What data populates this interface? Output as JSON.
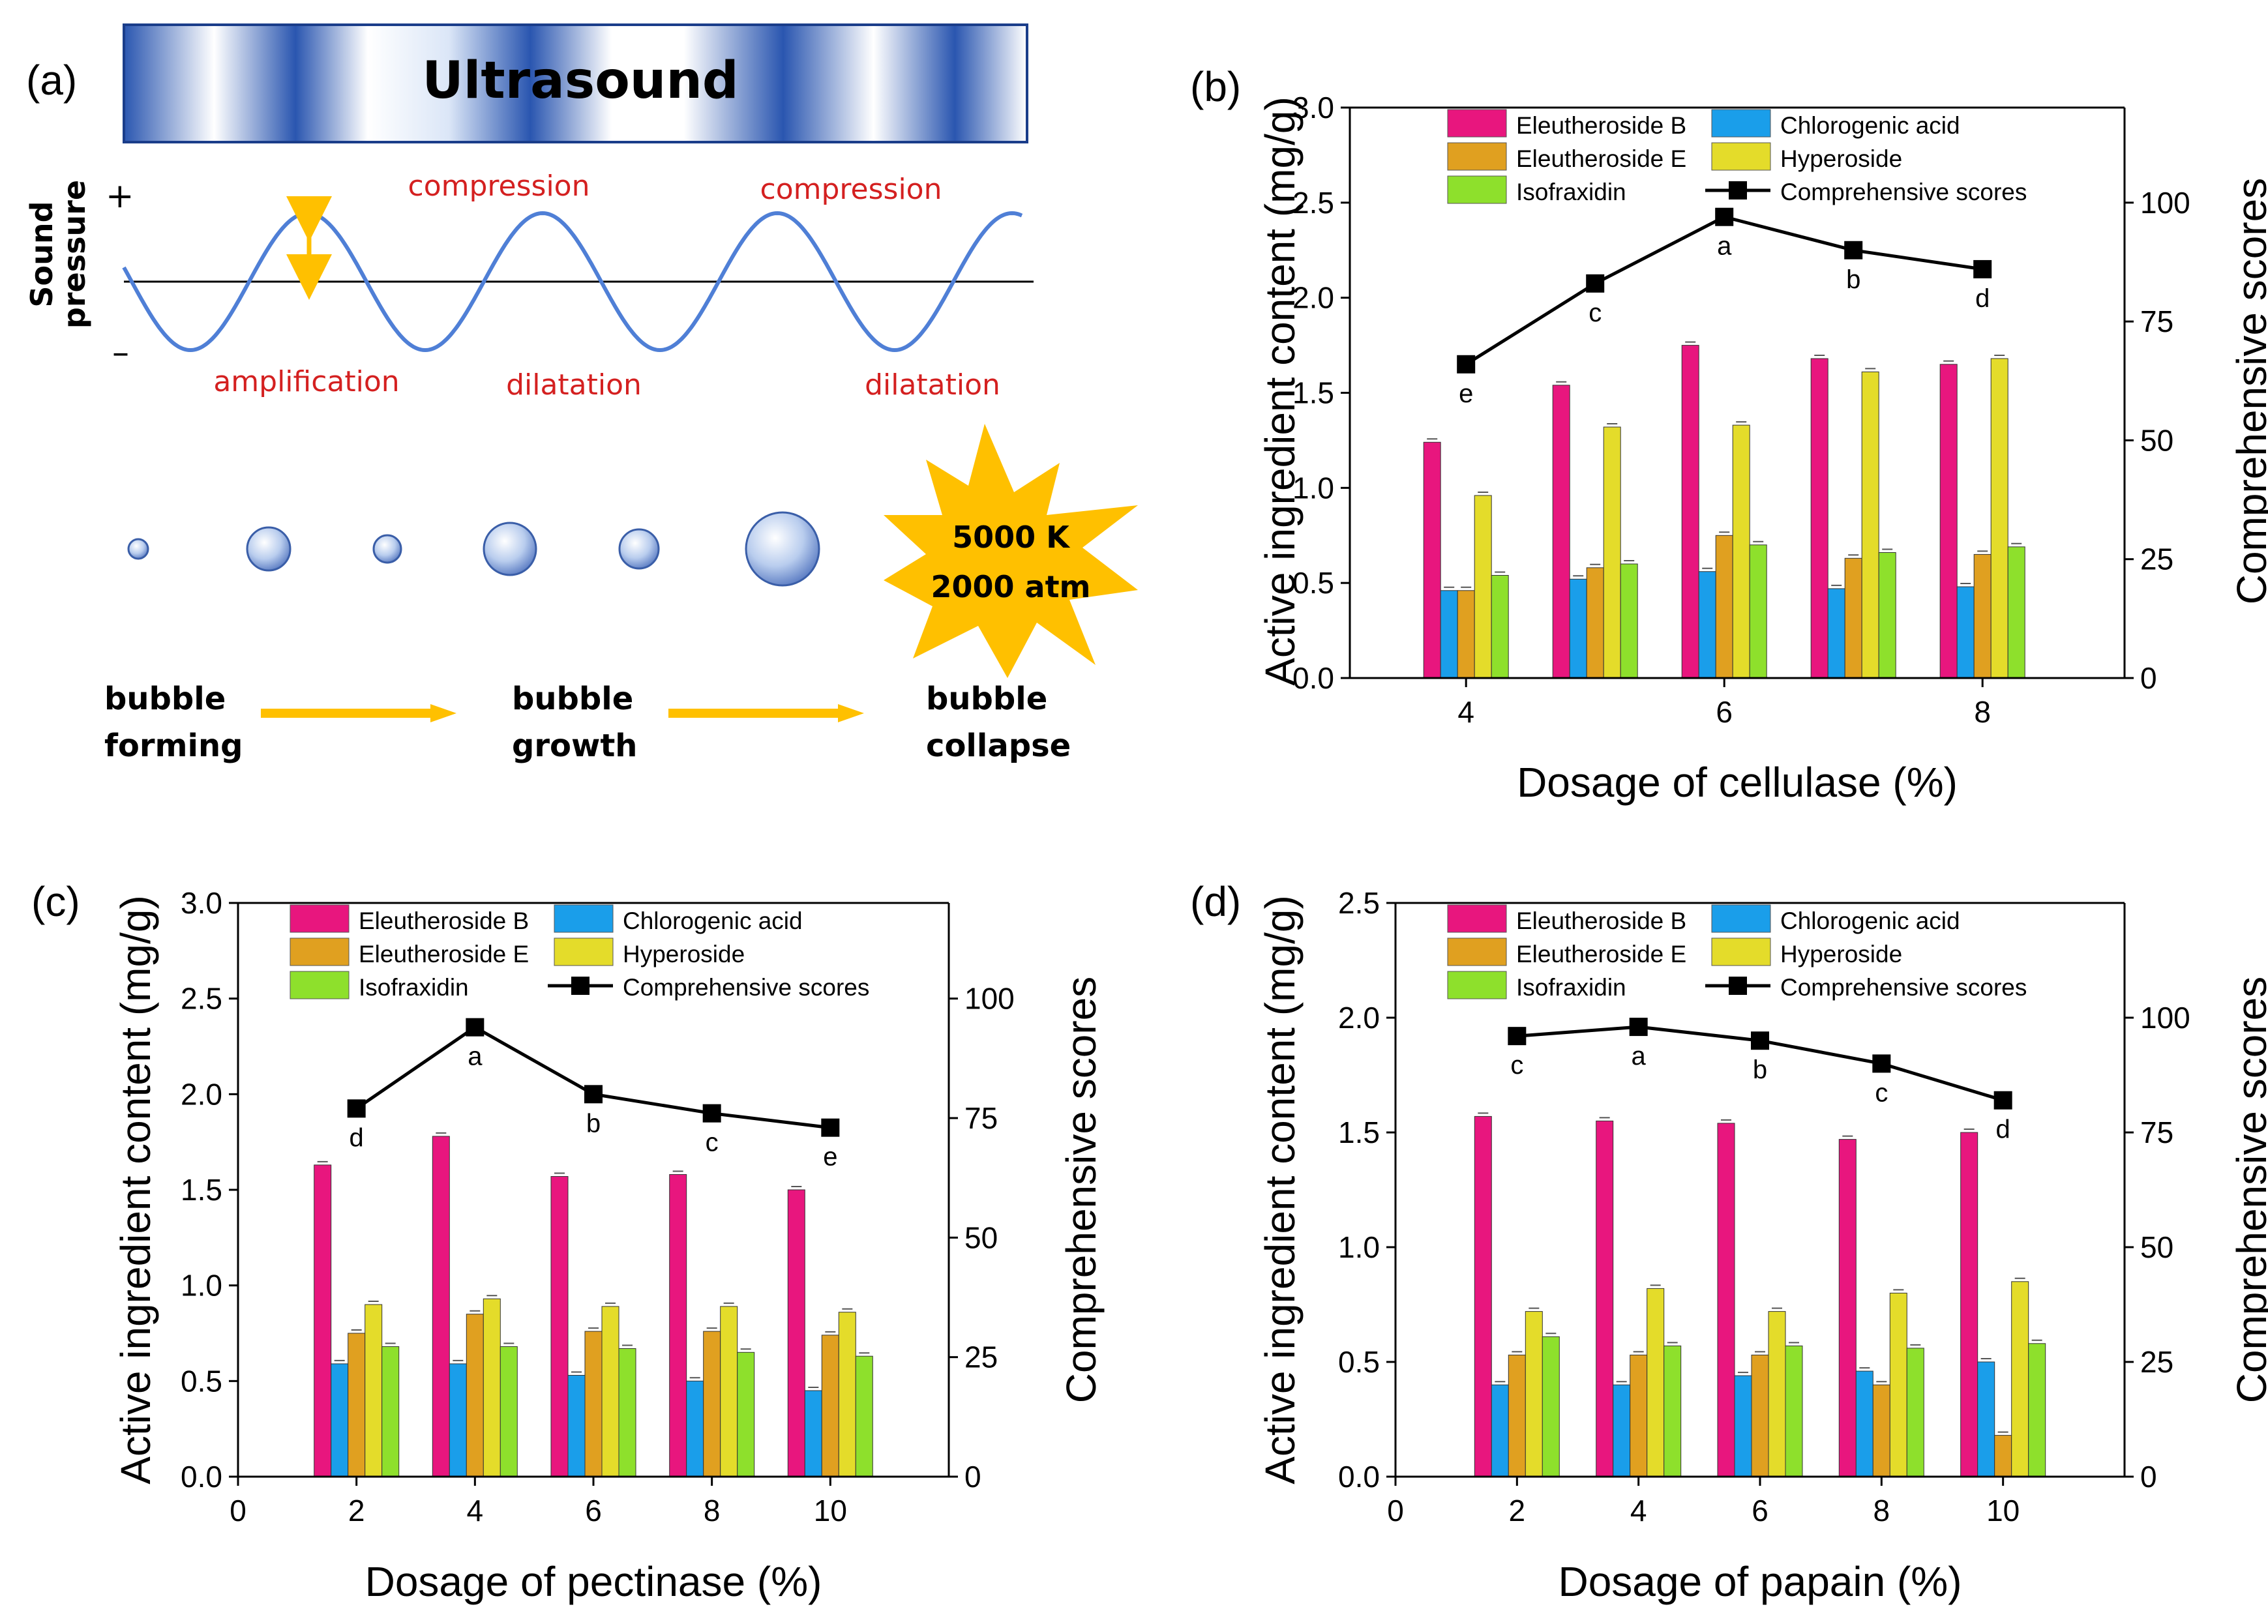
{
  "panel_a": {
    "label": "(a)",
    "banner_title": "Ultrasound",
    "axis_label_line1": "Sound",
    "axis_label_line2": "pressure",
    "plus_sign": "+",
    "minus_sign": "–",
    "compression_1": "compression",
    "compression_2": "compression",
    "amplification": "amplification",
    "dilatation_1": "dilatation",
    "dilatation_2": "dilatation",
    "burst_line1": "5000 K",
    "burst_line2": "2000 atm",
    "stage1_line1": "bubble",
    "stage1_line2": "forming",
    "stage2_line1": "bubble",
    "stage2_line2": "growth",
    "stage3_line1": "bubble",
    "stage3_line2": "collapse",
    "colors": {
      "wave": "#4f7fd6",
      "red_text": "#d42020",
      "arrow": "#ffc000",
      "burst": "#ffc000",
      "banner_dark": "#2a56b0"
    }
  },
  "series_colors": {
    "Eleutheroside B": "#e8167e",
    "Chlorogenic acid": "#1a9eea",
    "Eleutheroside E": "#e0a020",
    "Hyperoside": "#e4dc2a",
    "Isofraxidin": "#8ee02c",
    "Comprehensive scores": "#000000"
  },
  "chart_data": [
    {
      "panel": "(b)",
      "type": "bar",
      "xlabel": "Dosage of cellulase (%)",
      "ylabel": "Active ingredient content (mg/g)",
      "y2label": "Comprehensive scores",
      "x": [
        4,
        5,
        6,
        7,
        8
      ],
      "xlim": [
        3.1,
        9.1
      ],
      "xticks": [
        4,
        6,
        8
      ],
      "ylim": [
        0,
        3.0
      ],
      "yticks": [
        "0.0",
        "0.5",
        "1.0",
        "1.5",
        "2.0",
        "2.5",
        "3.0"
      ],
      "y2lim": [
        0,
        120
      ],
      "y2ticks": [
        "0",
        "25",
        "50",
        "75",
        "100"
      ],
      "legend_entries": [
        "Eleutheroside B",
        "Chlorogenic acid",
        "Eleutheroside E",
        "Hyperoside",
        "Isofraxidin",
        "Comprehensive scores"
      ],
      "series": [
        {
          "name": "Eleutheroside B",
          "values": [
            1.24,
            1.54,
            1.75,
            1.68,
            1.65
          ]
        },
        {
          "name": "Chlorogenic acid",
          "values": [
            0.46,
            0.52,
            0.56,
            0.47,
            0.48
          ]
        },
        {
          "name": "Eleutheroside E",
          "values": [
            0.46,
            0.58,
            0.75,
            0.63,
            0.65
          ]
        },
        {
          "name": "Hyperoside",
          "values": [
            0.96,
            1.32,
            1.33,
            1.61,
            1.68
          ]
        },
        {
          "name": "Isofraxidin",
          "values": [
            0.54,
            0.6,
            0.7,
            0.66,
            0.69
          ]
        }
      ],
      "line": {
        "name": "Comprehensive scores",
        "values": [
          66,
          83,
          97,
          90,
          86
        ],
        "labels": [
          "e",
          "c",
          "a",
          "b",
          "d"
        ]
      }
    },
    {
      "panel": "(c)",
      "type": "bar",
      "xlabel": "Dosage of pectinase (%)",
      "ylabel": "Active ingredient content (mg/g)",
      "y2label": "Comprehensive scores",
      "x": [
        2,
        4,
        6,
        8,
        10
      ],
      "xlim": [
        0,
        12
      ],
      "xticks": [
        0,
        2,
        4,
        6,
        8,
        10
      ],
      "ylim": [
        0,
        3.0
      ],
      "yticks": [
        "0.0",
        "0.5",
        "1.0",
        "1.5",
        "2.0",
        "2.5",
        "3.0"
      ],
      "y2lim": [
        0,
        120
      ],
      "y2ticks": [
        "0",
        "25",
        "50",
        "75",
        "100"
      ],
      "legend_entries": [
        "Eleutheroside B",
        "Chlorogenic acid",
        "Eleutheroside E",
        "Hyperoside",
        "Isofraxidin",
        "Comprehensive scores"
      ],
      "series": [
        {
          "name": "Eleutheroside B",
          "values": [
            1.63,
            1.78,
            1.57,
            1.58,
            1.5
          ]
        },
        {
          "name": "Chlorogenic acid",
          "values": [
            0.59,
            0.59,
            0.53,
            0.5,
            0.45
          ]
        },
        {
          "name": "Eleutheroside E",
          "values": [
            0.75,
            0.85,
            0.76,
            0.76,
            0.74
          ]
        },
        {
          "name": "Hyperoside",
          "values": [
            0.9,
            0.93,
            0.89,
            0.89,
            0.86
          ]
        },
        {
          "name": "Isofraxidin",
          "values": [
            0.68,
            0.68,
            0.67,
            0.65,
            0.63
          ]
        }
      ],
      "line": {
        "name": "Comprehensive scores",
        "values": [
          77,
          94,
          80,
          76,
          73
        ],
        "labels": [
          "d",
          "a",
          "b",
          "c",
          "e"
        ]
      }
    },
    {
      "panel": "(d)",
      "type": "bar",
      "xlabel": "Dosage of papain (%)",
      "ylabel": "Active ingredient content (mg/g)",
      "y2label": "Comprehensive scores",
      "x": [
        2,
        4,
        6,
        8,
        10
      ],
      "xlim": [
        0,
        12
      ],
      "xticks": [
        0,
        2,
        4,
        6,
        8,
        10
      ],
      "ylim": [
        0,
        2.5
      ],
      "yticks": [
        "0.0",
        "0.5",
        "1.0",
        "1.5",
        "2.0",
        "2.5"
      ],
      "y2lim": [
        0,
        125
      ],
      "y2ticks": [
        "0",
        "25",
        "50",
        "75",
        "100"
      ],
      "legend_entries": [
        "Eleutheroside B",
        "Chlorogenic acid",
        "Eleutheroside E",
        "Hyperoside",
        "Isofraxidin",
        "Comprehensive scores"
      ],
      "series": [
        {
          "name": "Eleutheroside B",
          "values": [
            1.57,
            1.55,
            1.54,
            1.47,
            1.5
          ]
        },
        {
          "name": "Chlorogenic acid",
          "values": [
            0.4,
            0.4,
            0.44,
            0.46,
            0.5
          ]
        },
        {
          "name": "Eleutheroside E",
          "values": [
            0.53,
            0.53,
            0.53,
            0.4,
            0.18
          ]
        },
        {
          "name": "Hyperoside",
          "values": [
            0.72,
            0.82,
            0.72,
            0.8,
            0.85
          ]
        },
        {
          "name": "Isofraxidin",
          "values": [
            0.61,
            0.57,
            0.57,
            0.56,
            0.58
          ]
        }
      ],
      "line": {
        "name": "Comprehensive scores",
        "values": [
          96,
          98,
          95,
          90,
          82
        ],
        "labels": [
          "c",
          "a",
          "b",
          "c",
          "d"
        ]
      }
    }
  ]
}
